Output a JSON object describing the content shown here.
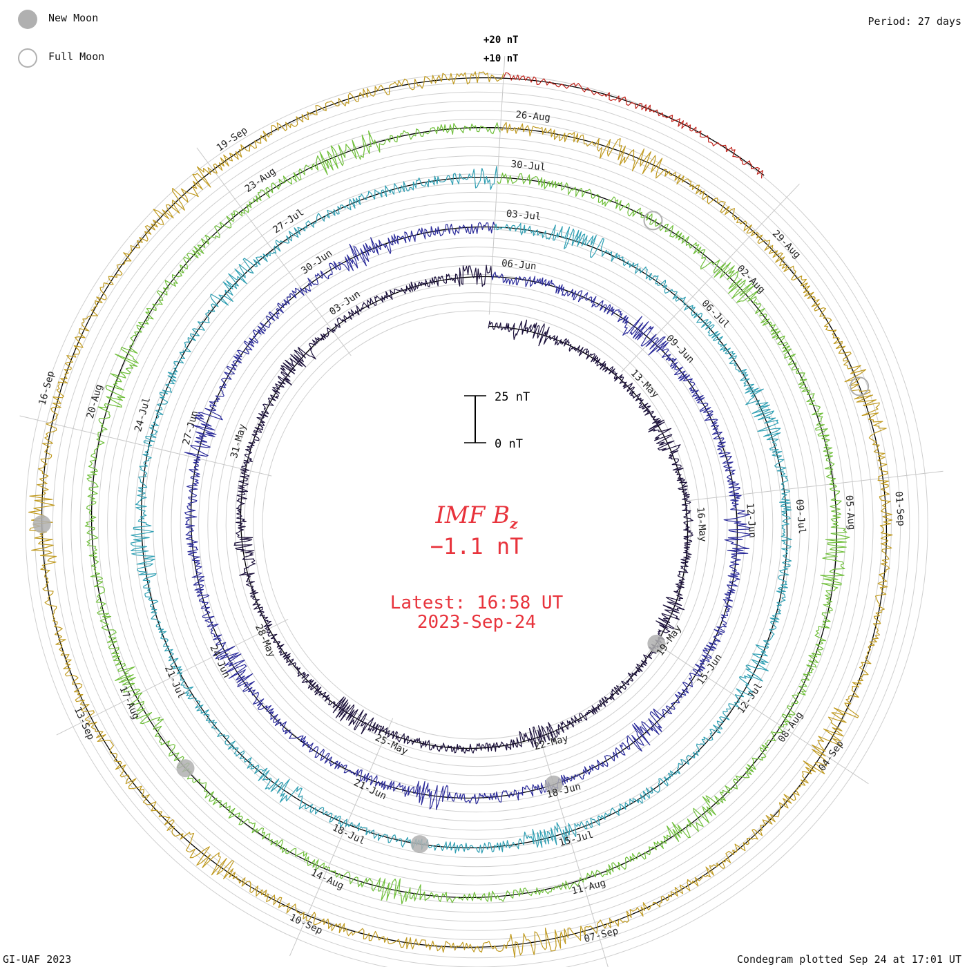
{
  "header": {
    "period_label": "Period: 27 days",
    "footer_left": "GI-UAF 2023",
    "footer_right": "Condegram plotted Sep 24 at 17:01 UT"
  },
  "legend": {
    "new_moon_label": "New Moon",
    "full_moon_label": "Full Moon",
    "new_moon_color": "#b0b0b0",
    "full_moon_color": "#b0b0b0"
  },
  "center": {
    "quantity": "IMF B",
    "subscript": "z",
    "current_value": "−1.1 nT",
    "latest_label": "Latest: 16:58 UT",
    "latest_date": "2023-Sep-24",
    "text_color": "#e8333c"
  },
  "chart_data": {
    "type": "line",
    "title": "IMF B",
    "subtitle": "",
    "period_days": 27,
    "scale_bar": {
      "top_label": "25 nT",
      "bottom_label": "0 nT",
      "span_nT": 25
    },
    "ring_scale_labels": [
      "+20 nT",
      "+10 nT"
    ],
    "series": [
      {
        "name": "",
        "start": "2023-05-10",
        "color": "#1a0f3a",
        "amplitude_nT": 5.5
      },
      {
        "name": "",
        "start": "2023-06-06",
        "color": "#2a2a9a",
        "amplitude_nT": 6.5
      },
      {
        "name": "",
        "start": "2023-07-03",
        "color": "#2f9fb3",
        "amplitude_nT": 6.0
      },
      {
        "name": "",
        "start": "2023-07-30",
        "color": "#6fbf3a",
        "amplitude_nT": 6.5
      },
      {
        "name": "",
        "start": "2023-08-26",
        "color": "#c09a20",
        "amplitude_nT": 6.5
      },
      {
        "name": "",
        "start": "2023-09-22",
        "color": "#c0221a",
        "amplitude_nT": 4.5
      }
    ],
    "date_labels": [
      [
        "13-May",
        "16-May",
        "19-May",
        "22-May",
        "25-May",
        "28-May",
        "31-May",
        "03-Jun",
        "06-Jun"
      ],
      [
        "09-Jun",
        "12-Jun",
        "15-Jun",
        "18-Jun",
        "21-Jun",
        "24-Jun",
        "27-Jun",
        "30-Jun",
        "03-Jul"
      ],
      [
        "06-Jul",
        "09-Jul",
        "12-Jul",
        "15-Jul",
        "18-Jul",
        "21-Jul",
        "24-Jul",
        "27-Jul",
        "30-Jul"
      ],
      [
        "02-Aug",
        "05-Aug",
        "08-Aug",
        "11-Aug",
        "14-Aug",
        "17-Aug",
        "20-Aug",
        "23-Aug",
        "26-Aug"
      ],
      [
        "29-Aug",
        "01-Sep",
        "04-Sep",
        "07-Sep",
        "10-Sep",
        "13-Sep",
        "16-Sep",
        "19-Sep",
        ""
      ]
    ],
    "moons": [
      {
        "type": "new",
        "date": "2023-05-19"
      },
      {
        "type": "new",
        "date": "2023-06-18"
      },
      {
        "type": "new",
        "date": "2023-07-17"
      },
      {
        "type": "new",
        "date": "2023-08-16"
      },
      {
        "type": "new",
        "date": "2023-09-15"
      },
      {
        "type": "full",
        "date": "2023-08-01"
      },
      {
        "type": "full",
        "date": "2023-08-31"
      }
    ]
  }
}
